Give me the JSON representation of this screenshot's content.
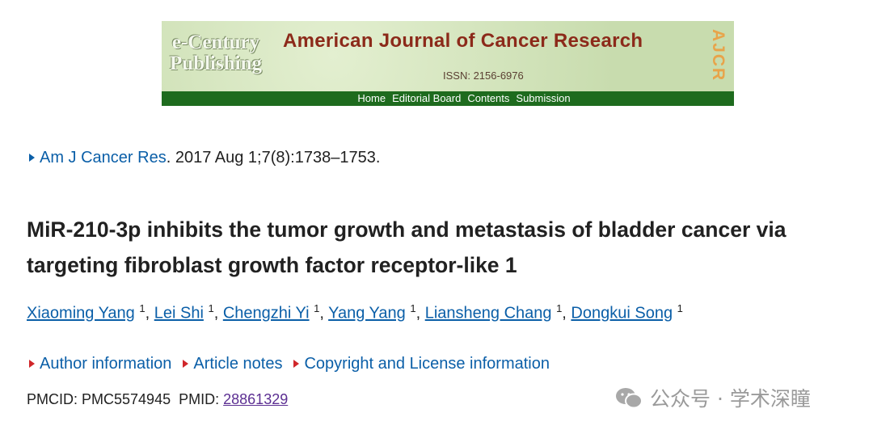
{
  "banner": {
    "publisher": [
      "e-Century",
      "Publishing"
    ],
    "journal": "American Journal of Cancer Research",
    "issn": "ISSN: 2156-6976",
    "acronym": "AJCR",
    "nav": [
      "Home",
      "Editorial Board",
      "Contents",
      "Submission"
    ]
  },
  "citation": {
    "journal": "Am J Cancer Res",
    "details": ". 2017 Aug 1;7(8):1738–1753."
  },
  "title": "MiR-210-3p inhibits the tumor growth and metastasis of bladder cancer via targeting fibroblast growth factor receptor-like 1",
  "authors": {
    "separator": ",",
    "list": [
      {
        "name": "Xiaoming Yang",
        "affiliation": "1"
      },
      {
        "name": "Lei Shi",
        "affiliation": "1"
      },
      {
        "name": "Chengzhi Yi",
        "affiliation": "1"
      },
      {
        "name": "Yang Yang",
        "affiliation": "1"
      },
      {
        "name": "Liansheng Chang",
        "affiliation": "1"
      },
      {
        "name": "Dongkui Song",
        "affiliation": "1"
      }
    ]
  },
  "info_links": [
    "Author information",
    "Article notes",
    "Copyright and License information"
  ],
  "ids": {
    "pmcid_label": "PMCID:",
    "pmcid": "PMC5574945",
    "pmid_label": "PMID:",
    "pmid": "28861329"
  },
  "watermark": "公众号 · 学术深瞳"
}
